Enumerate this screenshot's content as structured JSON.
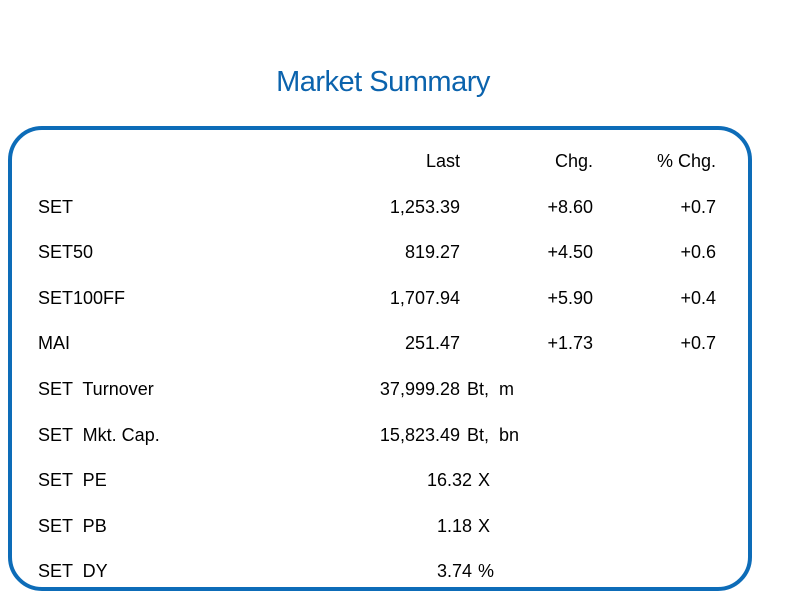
{
  "title": "Market Summary",
  "colors": {
    "accent": "#0b63ad",
    "border": "#0d6cb8"
  },
  "headers": {
    "last": "Last",
    "chg": "Chg.",
    "pct": "% Chg."
  },
  "indices": [
    {
      "name": "SET",
      "last": "1,253.39",
      "chg": "+8.60",
      "pct": "+0.7"
    },
    {
      "name": "SET50",
      "last": "819.27",
      "chg": "+4.50",
      "pct": "+0.6"
    },
    {
      "name": "SET100FF",
      "last": "1,707.94",
      "chg": "+5.90",
      "pct": "+0.4"
    },
    {
      "name": "MAI",
      "last": "251.47",
      "chg": "+1.73",
      "pct": "+0.7"
    }
  ],
  "stats": [
    {
      "name": "SET  Turnover",
      "value": "37,999.28",
      "unit": "Bt,  m"
    },
    {
      "name": "SET  Mkt. Cap.",
      "value": "15,823.49",
      "unit": "Bt,  bn"
    },
    {
      "name": "SET  PE",
      "value": "16.32",
      "unit": "X"
    },
    {
      "name": "SET  PB",
      "value": "1.18",
      "unit": "X"
    },
    {
      "name": "SET  DY",
      "value": "3.74",
      "unit": "%"
    }
  ]
}
